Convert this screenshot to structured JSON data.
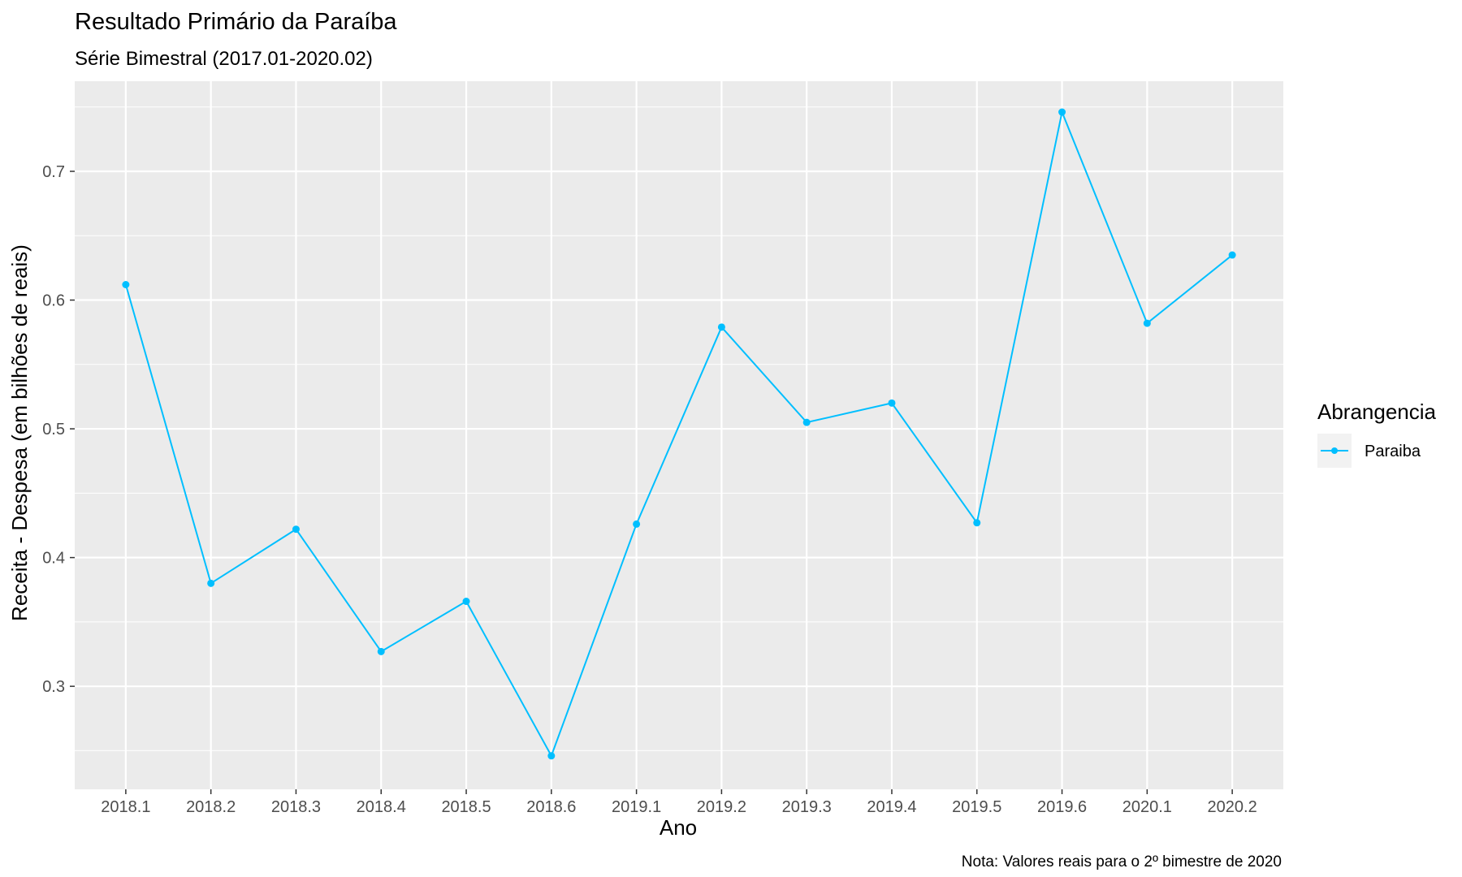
{
  "chart_data": {
    "type": "line",
    "title": "Resultado Primário da Paraíba",
    "subtitle": "Série Bimestral (2017.01-2020.02)",
    "xlabel": "Ano",
    "ylabel": "Receita - Despesa (em bilhões de reais)",
    "caption": "Nota: Valores reais para o 2º bimestre de 2020",
    "categories": [
      "2018.1",
      "2018.2",
      "2018.3",
      "2018.4",
      "2018.5",
      "2018.6",
      "2019.1",
      "2019.2",
      "2019.3",
      "2019.4",
      "2019.5",
      "2019.6",
      "2020.1",
      "2020.2"
    ],
    "series": [
      {
        "name": "Paraiba",
        "color": "#00bfff",
        "values": [
          0.612,
          0.38,
          0.422,
          0.327,
          0.366,
          0.246,
          0.426,
          0.579,
          0.505,
          0.52,
          0.427,
          0.746,
          0.582,
          0.635
        ]
      }
    ],
    "ylim": [
      0.22,
      0.77
    ],
    "yticks": [
      0.3,
      0.4,
      0.5,
      0.6,
      0.7
    ],
    "ytick_labels": [
      "0.3",
      "0.4",
      "0.5",
      "0.6",
      "0.7"
    ],
    "grid": true,
    "legend": {
      "title": "Abrangencia",
      "position": "right"
    },
    "panel_color": "#ebebeb"
  }
}
